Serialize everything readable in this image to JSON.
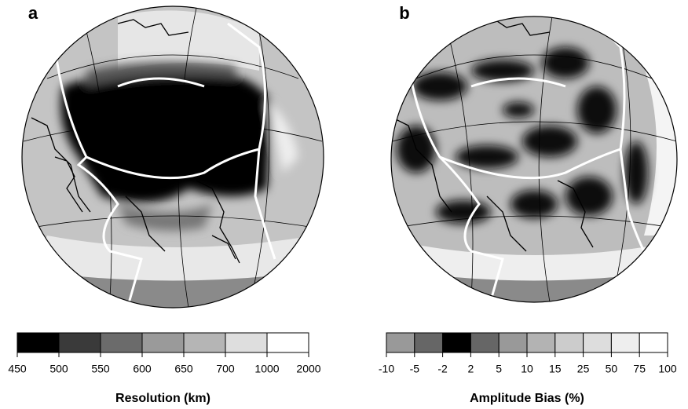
{
  "panels": [
    {
      "label": "a",
      "colorbar": {
        "title": "Resolution (km)",
        "ticks": [
          450,
          500,
          550,
          600,
          650,
          700,
          1000,
          2000
        ],
        "colors": [
          "#000000",
          "#3a3a3a",
          "#6b6b6b",
          "#9a9a9a",
          "#b5b5b5",
          "#dedede",
          "#ffffff"
        ]
      }
    },
    {
      "label": "b",
      "colorbar": {
        "title": "Amplitude Bias (%)",
        "ticks": [
          -10,
          -5,
          -2,
          2,
          5,
          10,
          15,
          25,
          50,
          75,
          100
        ],
        "colors": [
          "#999999",
          "#666666",
          "#000000",
          "#666666",
          "#999999",
          "#b3b3b3",
          "#cccccc",
          "#dddddd",
          "#eeeeee",
          "#ffffff"
        ]
      }
    }
  ]
}
